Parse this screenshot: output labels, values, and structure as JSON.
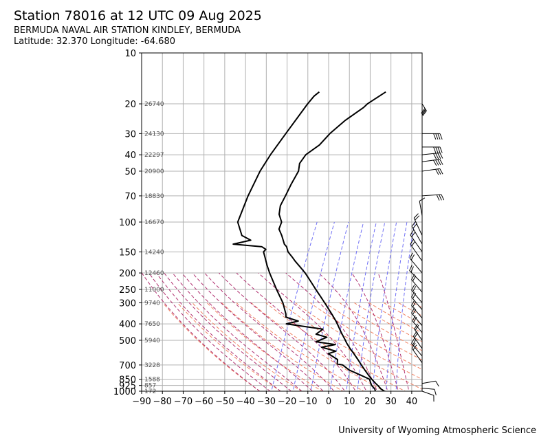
{
  "header": {
    "title": "Station 78016 at 12 UTC 09 Aug 2025",
    "subtitle": "BERMUDA NAVAL AIR STATION KINDLEY, BERMUDA",
    "latlon": "Latitude: 32.370 Longitude: -64.680"
  },
  "footer": {
    "credit": "University of Wyoming Atmospheric Science"
  },
  "colors": {
    "temperature": "#000000",
    "grid": "#b0b0b0",
    "mixing_ratio": "#6f6ff5",
    "dry_adiabat": "#f08060",
    "moist_adiabat": "#b03070",
    "height_label": "#505050"
  },
  "chart_data": {
    "type": "line",
    "subtype": "skew-T log-P sounding",
    "xlim": [
      -90,
      45
    ],
    "ylim_hPa": [
      1000,
      10
    ],
    "y_scale": "log",
    "x_ticks": [
      -90,
      -80,
      -70,
      -60,
      -50,
      -40,
      -30,
      -20,
      -10,
      0,
      10,
      20,
      30,
      40
    ],
    "x_tick_labels": [
      "−90",
      "−80",
      "−70",
      "−60",
      "−50",
      "−40",
      "−30",
      "−20",
      "−10",
      "0",
      "10",
      "20",
      "30",
      "40"
    ],
    "y_ticks": [
      10,
      20,
      30,
      40,
      50,
      70,
      100,
      150,
      200,
      250,
      300,
      400,
      500,
      700,
      850,
      925,
      1000
    ],
    "y_tick_labels": [
      "10",
      "20",
      "30",
      "40",
      "50",
      "70",
      "100",
      "150",
      "200",
      "250",
      "300",
      "400",
      "500",
      "700",
      "850",
      "925",
      "1000"
    ],
    "grid": true,
    "height_labels": [
      {
        "p": 1000,
        "label": "172"
      },
      {
        "p": 925,
        "label": "857"
      },
      {
        "p": 850,
        "label": "1588"
      },
      {
        "p": 700,
        "label": "3228"
      },
      {
        "p": 500,
        "label": "5940"
      },
      {
        "p": 400,
        "label": "7650"
      },
      {
        "p": 300,
        "label": "9740"
      },
      {
        "p": 250,
        "label": "11000"
      },
      {
        "p": 200,
        "label": "12460"
      },
      {
        "p": 150,
        "label": "14240"
      },
      {
        "p": 100,
        "label": "16670"
      },
      {
        "p": 70,
        "label": "18830"
      },
      {
        "p": 50,
        "label": "20900"
      },
      {
        "p": 40,
        "label": "22297"
      },
      {
        "p": 30,
        "label": "24130"
      },
      {
        "p": 20,
        "label": "26740"
      }
    ],
    "series": [
      {
        "role": "temperature",
        "points": [
          [
            1008,
            28
          ],
          [
            1000,
            26.8
          ],
          [
            970,
            24.6
          ],
          [
            925,
            22.2
          ],
          [
            900,
            20.6
          ],
          [
            850,
            17.6
          ],
          [
            800,
            14.8
          ],
          [
            750,
            11.9
          ],
          [
            700,
            8.9
          ],
          [
            650,
            5.8
          ],
          [
            600,
            2.3
          ],
          [
            560,
            -0.8
          ],
          [
            520,
            -3.9
          ],
          [
            500,
            -5.3
          ],
          [
            450,
            -9.3
          ],
          [
            400,
            -13.5
          ],
          [
            380,
            -15.4
          ],
          [
            350,
            -18.7
          ],
          [
            300,
            -25.1
          ],
          [
            275,
            -28.8
          ],
          [
            250,
            -32.9
          ],
          [
            225,
            -37.3
          ],
          [
            200,
            -42.3
          ],
          [
            185,
            -46.1
          ],
          [
            170,
            -50.3
          ],
          [
            160,
            -53.0
          ],
          [
            150,
            -56.1
          ],
          [
            140,
            -58.1
          ],
          [
            135,
            -59.9
          ],
          [
            120,
            -63.4
          ],
          [
            110,
            -66.4
          ],
          [
            100,
            -67.0
          ],
          [
            90,
            -70.2
          ],
          [
            80,
            -71.9
          ],
          [
            70,
            -72.0
          ],
          [
            60,
            -72.3
          ],
          [
            50,
            -72.2
          ],
          [
            45,
            -73.7
          ],
          [
            40,
            -73.0
          ],
          [
            35,
            -69.0
          ],
          [
            30,
            -67.0
          ],
          [
            25,
            -63.0
          ],
          [
            21,
            -57.6
          ],
          [
            20,
            -56.7
          ],
          [
            18,
            -53.0
          ],
          [
            17,
            -51.0
          ]
        ]
      },
      {
        "role": "dewpoint",
        "points": [
          [
            1008,
            22.9
          ],
          [
            1000,
            22.5
          ],
          [
            970,
            21.6
          ],
          [
            925,
            19.2
          ],
          [
            880,
            17.6
          ],
          [
            850,
            16.6
          ],
          [
            800,
            10.8
          ],
          [
            750,
            4.4
          ],
          [
            700,
            -0.1
          ],
          [
            690,
            -3.0
          ],
          [
            650,
            -4.0
          ],
          [
            600,
            -10.0
          ],
          [
            580,
            -7.0
          ],
          [
            550,
            -14.9
          ],
          [
            530,
            -9.0
          ],
          [
            510,
            -19.0
          ],
          [
            480,
            -15.0
          ],
          [
            460,
            -21.0
          ],
          [
            430,
            -19.0
          ],
          [
            400,
            -38.0
          ],
          [
            385,
            -33.0
          ],
          [
            365,
            -40.0
          ],
          [
            350,
            -40.8
          ],
          [
            300,
            -45.2
          ],
          [
            250,
            -51.8
          ],
          [
            200,
            -59.4
          ],
          [
            180,
            -62.7
          ],
          [
            160,
            -66.0
          ],
          [
            150,
            -67.9
          ],
          [
            145,
            -67.4
          ],
          [
            140,
            -70.0
          ],
          [
            135,
            -84.5
          ],
          [
            128,
            -77.1
          ],
          [
            120,
            -82.6
          ],
          [
            100,
            -88.1
          ],
          [
            70,
            -90.0
          ],
          [
            50,
            -90.7
          ],
          [
            40,
            -90.0
          ],
          [
            30,
            -88.2
          ],
          [
            20,
            -85.5
          ],
          [
            18,
            -84.4
          ],
          [
            17,
            -83.0
          ]
        ]
      }
    ]
  }
}
